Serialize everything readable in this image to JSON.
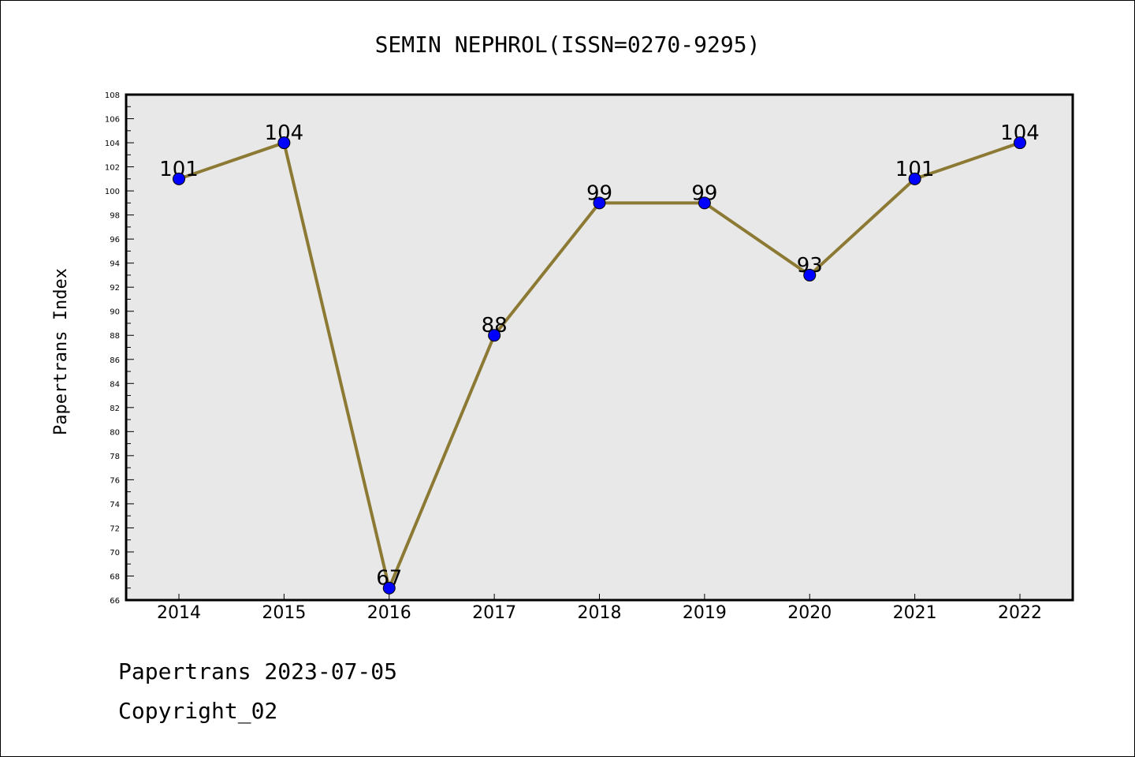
{
  "chart_data": {
    "type": "line",
    "title": "SEMIN NEPHROL(ISSN=0270-9295)",
    "xlabel": "",
    "ylabel": "Papertrans Index",
    "categories": [
      "2014",
      "2015",
      "2016",
      "2017",
      "2018",
      "2019",
      "2020",
      "2021",
      "2022"
    ],
    "series": [
      {
        "values": [
          101,
          104,
          67,
          88,
          99,
          99,
          93,
          101,
          104
        ]
      }
    ],
    "ylim": [
      66,
      108
    ],
    "ytick_step": 2,
    "grid": false,
    "plot_background": "#e8e8e8",
    "line_color": "#8c7a34",
    "marker_color": "#0000ff"
  },
  "footer": {
    "line1": "Papertrans 2023-07-05",
    "line2": "Copyright_02"
  }
}
